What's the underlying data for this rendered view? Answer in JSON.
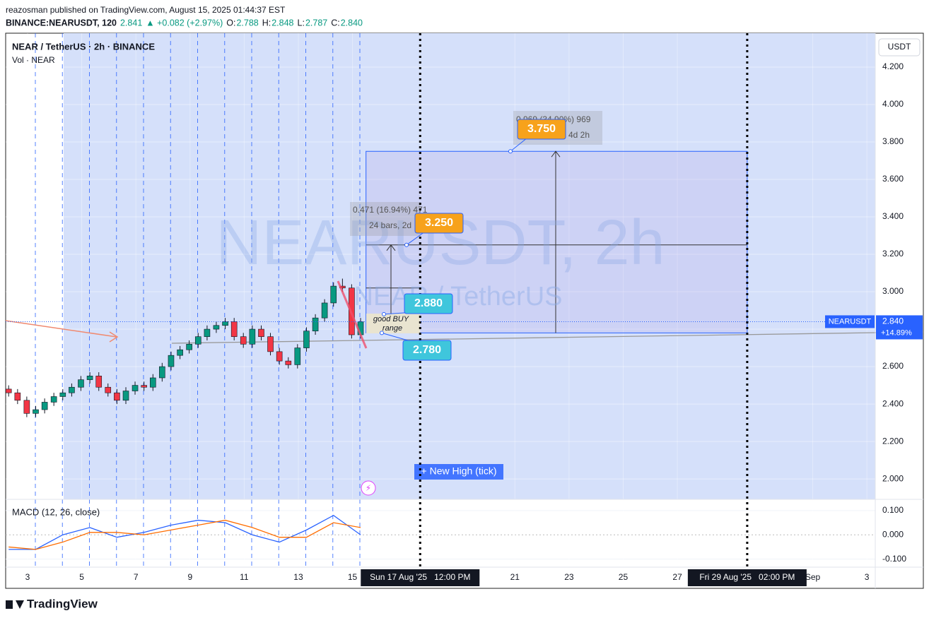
{
  "header": {
    "byline": "reazosman published on TradingView.com, August 15, 2025 01:44:37 EST",
    "symbol": "BINANCE:NEARUSDT, 120",
    "price": "2.841",
    "change": "▲ +0.082 (+2.97%)",
    "ohlc": [
      {
        "label": "O:",
        "value": "2.788"
      },
      {
        "label": "H:",
        "value": "2.848"
      },
      {
        "label": "L:",
        "value": "2.787"
      },
      {
        "label": "C:",
        "value": "2.840"
      }
    ]
  },
  "chart_data": [
    {
      "type": "candlestick",
      "title": "NEAR / TetherUS · 2h · BINANCE",
      "subtitle": "Vol · NEAR",
      "watermark": "NEARUSDT, 2h",
      "watermark_sub": "NEAR / TetherUS",
      "unit": "USDT",
      "up_color": "#089981",
      "down_color": "#f23645",
      "grid": true,
      "x": [
        2.3,
        2.63,
        2.97,
        3.3,
        3.63,
        3.97,
        4.3,
        4.63,
        4.97,
        5.3,
        5.63,
        5.97,
        6.3,
        6.63,
        6.97,
        7.3,
        7.63,
        7.97,
        8.3,
        8.63,
        8.97,
        9.3,
        9.63,
        9.97,
        10.3,
        10.63,
        10.97,
        11.3,
        11.63,
        11.97,
        12.3,
        12.63,
        12.97,
        13.3,
        13.63,
        13.97,
        14.3,
        14.63,
        14.97,
        15.3
      ],
      "open": [
        2.48,
        2.46,
        2.42,
        2.35,
        2.37,
        2.41,
        2.44,
        2.46,
        2.49,
        2.53,
        2.55,
        2.49,
        2.46,
        2.42,
        2.47,
        2.5,
        2.49,
        2.54,
        2.6,
        2.66,
        2.69,
        2.72,
        2.76,
        2.8,
        2.82,
        2.84,
        2.76,
        2.72,
        2.8,
        2.76,
        2.68,
        2.63,
        2.61,
        2.7,
        2.79,
        2.86,
        2.94,
        3.03,
        3.02,
        2.77
      ],
      "high": [
        2.5,
        2.48,
        2.44,
        2.39,
        2.43,
        2.46,
        2.48,
        2.51,
        2.55,
        2.57,
        2.57,
        2.51,
        2.48,
        2.49,
        2.52,
        2.52,
        2.56,
        2.62,
        2.68,
        2.71,
        2.74,
        2.78,
        2.82,
        2.84,
        2.86,
        2.86,
        2.78,
        2.82,
        2.82,
        2.78,
        2.7,
        2.65,
        2.72,
        2.81,
        2.88,
        2.96,
        3.05,
        3.07,
        3.04,
        2.86
      ],
      "low": [
        2.44,
        2.4,
        2.33,
        2.33,
        2.35,
        2.39,
        2.42,
        2.44,
        2.47,
        2.51,
        2.47,
        2.44,
        2.4,
        2.4,
        2.45,
        2.47,
        2.47,
        2.52,
        2.58,
        2.64,
        2.67,
        2.7,
        2.74,
        2.78,
        2.8,
        2.74,
        2.7,
        2.7,
        2.74,
        2.66,
        2.61,
        2.59,
        2.59,
        2.68,
        2.77,
        2.84,
        2.92,
        3.0,
        2.75,
        2.75
      ],
      "close": [
        2.46,
        2.42,
        2.35,
        2.37,
        2.41,
        2.44,
        2.46,
        2.49,
        2.53,
        2.55,
        2.49,
        2.46,
        2.42,
        2.47,
        2.5,
        2.49,
        2.54,
        2.6,
        2.66,
        2.69,
        2.72,
        2.76,
        2.8,
        2.82,
        2.84,
        2.76,
        2.72,
        2.8,
        2.76,
        2.68,
        2.63,
        2.61,
        2.7,
        2.79,
        2.86,
        2.94,
        3.03,
        3.02,
        2.77,
        2.84
      ],
      "xlim": [
        2.19,
        34.31
      ],
      "xticks": [
        3,
        5,
        7,
        9,
        11,
        13,
        15,
        21,
        23,
        25,
        27,
        {
          "value": 32,
          "label": "Sep"
        },
        {
          "value": 34,
          "label": "3"
        }
      ],
      "x_markers": [
        {
          "value": 17.5,
          "label": "Sun 17 Aug '25   12:00 PM"
        },
        {
          "value": 29.58,
          "label": "Fri 29 Aug '25   02:00 PM"
        }
      ],
      "ylim": [
        1.891,
        4.381
      ],
      "yticks": [
        {
          "value": 2.0,
          "label": "2.000"
        },
        {
          "value": 2.2,
          "label": "2.200"
        },
        {
          "value": 2.4,
          "label": "2.400"
        },
        {
          "value": 2.6,
          "label": "2.600"
        },
        {
          "value": 2.8,
          "label": "2.800"
        },
        {
          "value": 3.0,
          "label": "3.000"
        },
        {
          "value": 3.2,
          "label": "3.200"
        },
        {
          "value": 3.4,
          "label": "3.400"
        },
        {
          "value": 3.6,
          "label": "3.600"
        },
        {
          "value": 3.8,
          "label": "3.800"
        },
        {
          "value": 4.0,
          "label": "4.000"
        },
        {
          "value": 4.2,
          "label": "4.200"
        }
      ],
      "annotations": [
        {
          "value": 3.75,
          "label": "3.750",
          "color": "#f7a21b"
        },
        {
          "value": 3.25,
          "label": "3.250",
          "color": "#f7a21b"
        },
        {
          "value": 2.88,
          "label": "2.880",
          "color": "#3fc6dc"
        },
        {
          "value": 2.78,
          "label": "2.780",
          "color": "#3fc6dc"
        }
      ],
      "measure_labels": [
        "0.969 (34.90%) 969",
        "4d 2h",
        "0.471 (16.94%) 471",
        "24 bars, 2d"
      ],
      "notes": [
        "good BUY",
        "range",
        "+ New High (tick)"
      ],
      "last": {
        "value": 2.84,
        "label": "2.840"
      },
      "last_change": "+14.89%",
      "last_tag": "NEARUSDT"
    },
    {
      "type": "line",
      "title": "MACD (12, 26, close)",
      "x": [
        2.3,
        3.3,
        4.3,
        5.3,
        6.3,
        7.3,
        8.3,
        9.3,
        10.3,
        11.3,
        12.3,
        13.3,
        14.3,
        15.3
      ],
      "series": [
        {
          "color": "#2962ff",
          "values": [
            -0.06,
            -0.06,
            0.0,
            0.03,
            -0.01,
            0.01,
            0.04,
            0.06,
            0.05,
            0.0,
            -0.03,
            0.02,
            0.08,
            0.0
          ]
        },
        {
          "color": "#ff6d00",
          "values": [
            -0.05,
            -0.06,
            -0.03,
            0.01,
            0.01,
            0.0,
            0.02,
            0.04,
            0.06,
            0.03,
            -0.01,
            -0.01,
            0.05,
            0.03
          ]
        }
      ],
      "xlim": [
        2.19,
        34.31
      ],
      "ylim": [
        -0.133,
        0.146
      ],
      "yticks": [
        {
          "value": 0.1,
          "label": "0.100"
        },
        {
          "value": 0,
          "label": "0.000"
        },
        {
          "value": -0.1,
          "label": "-0.100"
        }
      ]
    }
  ],
  "footer": {
    "brand": "TradingView"
  }
}
